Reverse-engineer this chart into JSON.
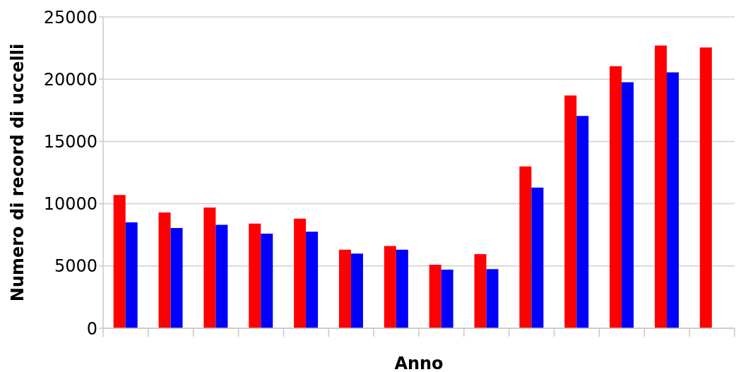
{
  "chart_data": {
    "type": "bar",
    "xlabel": "Anno",
    "ylabel": "Numero di record di uccelli",
    "categories": [
      null,
      null,
      null,
      null,
      null,
      null,
      null,
      null,
      null,
      null,
      null,
      null,
      null,
      null
    ],
    "series": [
      {
        "color": "#ff0000",
        "values": [
          10700,
          9300,
          9700,
          8400,
          8800,
          6300,
          6600,
          5100,
          5950,
          13000,
          18700,
          21050,
          22700,
          22550
        ]
      },
      {
        "color": "#0000ff",
        "values": [
          8500,
          8050,
          8300,
          7600,
          7750,
          6000,
          6300,
          4700,
          4750,
          11300,
          17050,
          19750,
          20550,
          null
        ]
      }
    ],
    "ylim": [
      0,
      25000
    ],
    "yticks": [
      0,
      5000,
      10000,
      15000,
      20000,
      25000
    ],
    "grid": "y",
    "legend": false
  }
}
